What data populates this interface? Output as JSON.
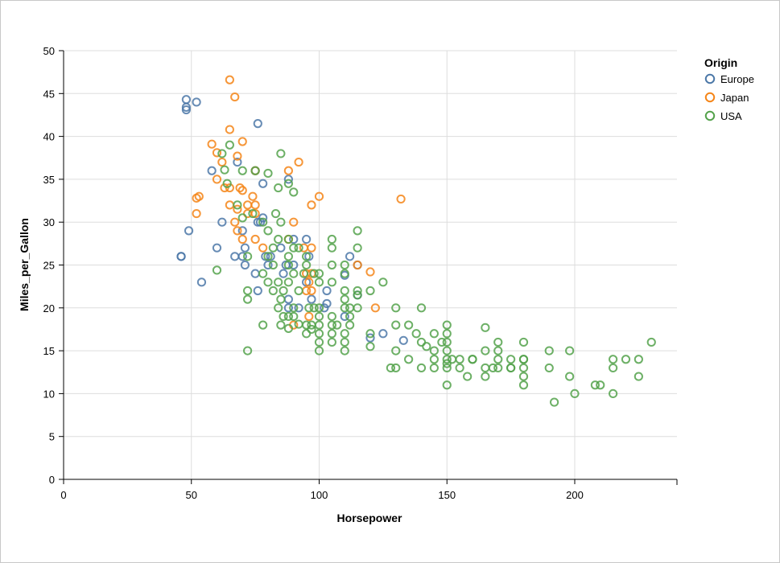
{
  "chart_data": {
    "type": "scatter",
    "xlabel": "Horsepower",
    "ylabel": "Miles_per_Gallon",
    "xlim": [
      0,
      240
    ],
    "ylim": [
      0,
      50
    ],
    "x_ticks": [
      0,
      50,
      100,
      150,
      200
    ],
    "y_ticks": [
      0,
      5,
      10,
      15,
      20,
      25,
      30,
      35,
      40,
      45,
      50
    ],
    "grid": true,
    "legend": {
      "title": "Origin",
      "position": "top-right"
    },
    "series": [
      {
        "name": "Europe",
        "color": "#4c78a8",
        "points": [
          [
            48,
            44.3
          ],
          [
            48,
            43.4
          ],
          [
            52,
            44
          ],
          [
            76,
            41.5
          ],
          [
            48,
            43.1
          ],
          [
            58,
            36
          ],
          [
            68,
            37
          ],
          [
            78,
            34.5
          ],
          [
            88,
            35
          ],
          [
            75,
            36
          ],
          [
            49,
            29
          ],
          [
            46,
            26
          ],
          [
            46,
            26
          ],
          [
            54,
            23
          ],
          [
            60,
            27
          ],
          [
            62,
            30
          ],
          [
            67,
            26
          ],
          [
            70,
            29
          ],
          [
            70,
            26
          ],
          [
            71,
            27
          ],
          [
            71,
            25
          ],
          [
            75,
            24
          ],
          [
            76,
            22
          ],
          [
            76,
            30
          ],
          [
            77,
            30
          ],
          [
            78,
            30.5
          ],
          [
            79,
            26
          ],
          [
            80,
            25
          ],
          [
            81,
            26
          ],
          [
            85,
            27
          ],
          [
            86,
            24
          ],
          [
            87,
            25
          ],
          [
            88,
            20
          ],
          [
            88,
            21
          ],
          [
            90,
            28
          ],
          [
            90,
            25
          ],
          [
            92,
            20
          ],
          [
            95,
            28
          ],
          [
            95,
            23
          ],
          [
            97,
            21
          ],
          [
            102,
            20
          ],
          [
            103,
            20.5
          ],
          [
            110,
            19
          ],
          [
            112,
            26
          ],
          [
            115,
            21.5
          ],
          [
            115,
            25
          ],
          [
            120,
            16.5
          ],
          [
            125,
            17
          ],
          [
            133,
            16.2
          ],
          [
            110,
            23.8
          ],
          [
            103,
            22
          ],
          [
            96,
            26
          ]
        ]
      },
      {
        "name": "Japan",
        "color": "#f58518",
        "points": [
          [
            65,
            46.6
          ],
          [
            67,
            44.6
          ],
          [
            65,
            40.8
          ],
          [
            58,
            39.1
          ],
          [
            60,
            38.1
          ],
          [
            68,
            37.7
          ],
          [
            92,
            37
          ],
          [
            62,
            37
          ],
          [
            70,
            39.4
          ],
          [
            52,
            32.8
          ],
          [
            53,
            33
          ],
          [
            52,
            31
          ],
          [
            60,
            35
          ],
          [
            63,
            34
          ],
          [
            65,
            32
          ],
          [
            68,
            31.5
          ],
          [
            69,
            34
          ],
          [
            70,
            33.7
          ],
          [
            72,
            32
          ],
          [
            74,
            33
          ],
          [
            75,
            36
          ],
          [
            75,
            32
          ],
          [
            67,
            30
          ],
          [
            68,
            29
          ],
          [
            70,
            28
          ],
          [
            75,
            28
          ],
          [
            78,
            27
          ],
          [
            88,
            28
          ],
          [
            90,
            30
          ],
          [
            94,
            27
          ],
          [
            95,
            24
          ],
          [
            97,
            24
          ],
          [
            95,
            22
          ],
          [
            96,
            23
          ],
          [
            100,
            33
          ],
          [
            97,
            32
          ],
          [
            132,
            32.7
          ],
          [
            90,
            18
          ],
          [
            96,
            19
          ],
          [
            97,
            27
          ],
          [
            115,
            25
          ],
          [
            120,
            24.2
          ],
          [
            122,
            20
          ],
          [
            88,
            36
          ],
          [
            65,
            34
          ],
          [
            72,
            31
          ],
          [
            97,
            22
          ],
          [
            75,
            31
          ]
        ]
      },
      {
        "name": "USA",
        "color": "#54a24b",
        "points": [
          [
            65,
            39
          ],
          [
            62,
            38
          ],
          [
            63,
            36.1
          ],
          [
            70,
            36
          ],
          [
            75,
            36
          ],
          [
            80,
            35.7
          ],
          [
            85,
            38
          ],
          [
            88,
            34.5
          ],
          [
            90,
            33.5
          ],
          [
            84,
            34
          ],
          [
            64,
            34.5
          ],
          [
            68,
            32
          ],
          [
            70,
            30.5
          ],
          [
            74,
            31
          ],
          [
            78,
            30
          ],
          [
            80,
            29
          ],
          [
            83,
            31
          ],
          [
            85,
            30
          ],
          [
            88,
            28
          ],
          [
            90,
            27
          ],
          [
            92,
            27
          ],
          [
            95,
            26
          ],
          [
            95,
            25
          ],
          [
            98,
            24
          ],
          [
            100,
            23
          ],
          [
            105,
            25
          ],
          [
            105,
            28
          ],
          [
            105,
            27
          ],
          [
            105,
            23
          ],
          [
            110,
            24
          ],
          [
            110,
            22
          ],
          [
            110,
            21
          ],
          [
            110,
            20
          ],
          [
            112,
            18
          ],
          [
            115,
            22
          ],
          [
            115,
            21.5
          ],
          [
            115,
            29
          ],
          [
            115,
            27
          ],
          [
            120,
            22
          ],
          [
            125,
            23
          ],
          [
            130,
            20
          ],
          [
            130,
            18
          ],
          [
            135,
            18
          ],
          [
            138,
            17
          ],
          [
            140,
            16
          ],
          [
            140,
            20
          ],
          [
            145,
            17
          ],
          [
            145,
            15
          ],
          [
            148,
            16
          ],
          [
            150,
            18
          ],
          [
            150,
            17
          ],
          [
            150,
            16
          ],
          [
            150,
            15
          ],
          [
            150,
            14
          ],
          [
            150,
            13
          ],
          [
            150,
            11
          ],
          [
            152,
            14
          ],
          [
            155,
            13
          ],
          [
            158,
            12
          ],
          [
            160,
            14
          ],
          [
            165,
            15
          ],
          [
            165,
            13
          ],
          [
            165,
            17.7
          ],
          [
            168,
            13
          ],
          [
            170,
            16
          ],
          [
            170,
            14
          ],
          [
            170,
            13
          ],
          [
            175,
            14
          ],
          [
            175,
            13
          ],
          [
            180,
            16
          ],
          [
            180,
            14
          ],
          [
            180,
            13
          ],
          [
            180,
            12
          ],
          [
            180,
            11
          ],
          [
            190,
            15
          ],
          [
            190,
            13
          ],
          [
            192,
            9
          ],
          [
            198,
            15
          ],
          [
            198,
            12
          ],
          [
            200,
            10
          ],
          [
            208,
            11
          ],
          [
            210,
            11
          ],
          [
            215,
            14
          ],
          [
            215,
            13
          ],
          [
            215,
            10
          ],
          [
            220,
            14
          ],
          [
            225,
            14
          ],
          [
            225,
            12
          ],
          [
            230,
            16
          ],
          [
            72,
            15
          ],
          [
            72,
            22
          ],
          [
            72,
            21
          ],
          [
            78,
            18
          ],
          [
            80,
            23
          ],
          [
            82,
            22
          ],
          [
            84,
            20
          ],
          [
            85,
            21
          ],
          [
            86,
            19
          ],
          [
            88,
            19
          ],
          [
            90,
            20
          ],
          [
            90,
            19
          ],
          [
            95,
            18
          ],
          [
            95,
            17
          ],
          [
            97,
            18
          ],
          [
            100,
            18
          ],
          [
            100,
            17
          ],
          [
            100,
            16
          ],
          [
            100,
            15
          ],
          [
            100,
            19
          ],
          [
            100,
            20
          ],
          [
            105,
            19
          ],
          [
            105,
            18
          ],
          [
            105,
            17
          ],
          [
            105,
            16
          ],
          [
            107,
            18
          ],
          [
            110,
            17
          ],
          [
            110,
            16
          ],
          [
            110,
            15
          ],
          [
            112,
            19
          ],
          [
            120,
            15.5
          ],
          [
            120,
            17
          ],
          [
            128,
            13
          ],
          [
            130,
            13
          ],
          [
            130,
            15
          ],
          [
            135,
            14
          ],
          [
            140,
            13
          ],
          [
            142,
            15.5
          ],
          [
            145,
            13
          ],
          [
            145,
            14
          ],
          [
            150,
            13.5
          ],
          [
            155,
            14
          ],
          [
            160,
            14
          ],
          [
            165,
            12
          ],
          [
            170,
            15
          ],
          [
            175,
            13
          ],
          [
            180,
            14
          ],
          [
            60,
            24.4
          ],
          [
            72,
            26
          ],
          [
            78,
            24
          ],
          [
            80,
            26
          ],
          [
            82,
            25
          ],
          [
            84,
            23
          ],
          [
            86,
            22
          ],
          [
            88,
            23
          ],
          [
            90,
            24
          ],
          [
            92,
            22
          ],
          [
            94,
            24
          ],
          [
            96,
            20
          ],
          [
            98,
            20
          ],
          [
            88,
            26
          ],
          [
            85,
            18
          ],
          [
            88,
            17.6
          ],
          [
            92,
            18.1
          ],
          [
            97,
            17.5
          ],
          [
            100,
            24
          ],
          [
            110,
            25
          ],
          [
            112,
            20
          ],
          [
            115,
            20
          ],
          [
            88,
            25
          ],
          [
            84,
            28
          ],
          [
            82,
            27
          ]
        ]
      }
    ]
  }
}
